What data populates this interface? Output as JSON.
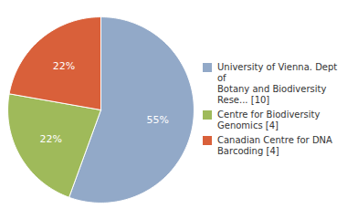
{
  "chart_data": {
    "type": "pie",
    "categories": [
      "University of Vienna. Dept of\nBotany and Biodiversity\nRese... [10]",
      "Centre for Biodiversity\nGenomics [4]",
      "Canadian Centre for DNA\nBarcoding [4]"
    ],
    "values": [
      55,
      22,
      22
    ],
    "value_labels": [
      "55%",
      "22%",
      "22%"
    ],
    "data_labels": true,
    "colors": [
      "#92a9c8",
      "#9fba5a",
      "#d9603a"
    ],
    "legend": "right"
  }
}
